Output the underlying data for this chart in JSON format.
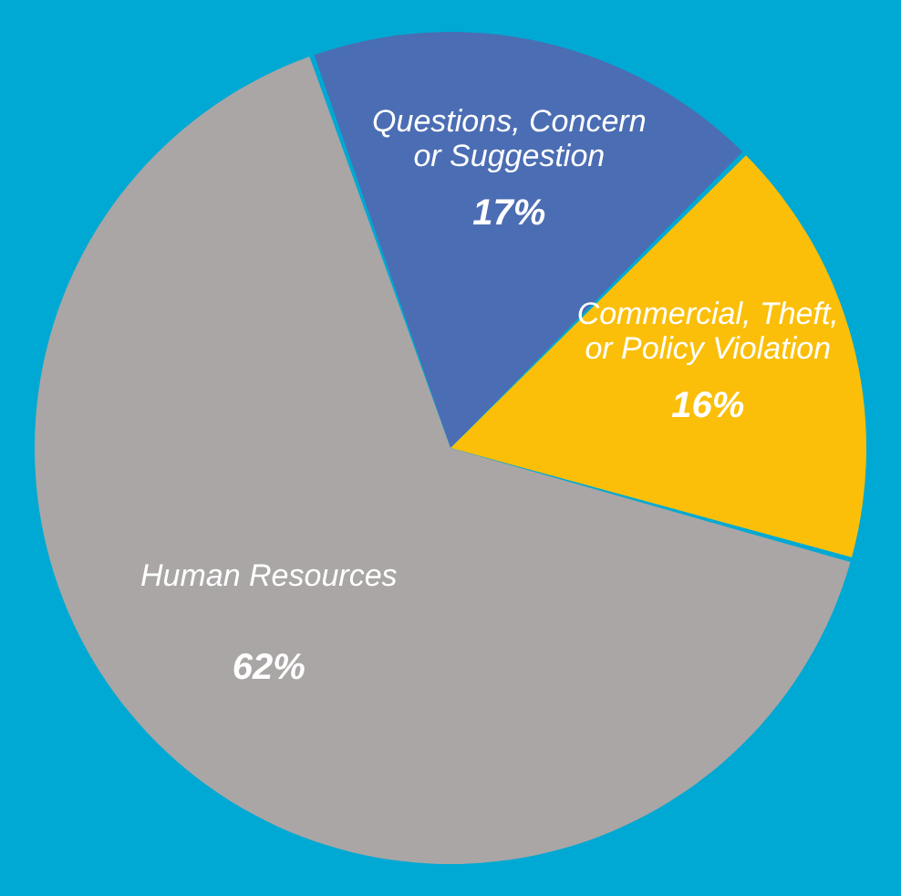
{
  "chart_data": {
    "type": "pie",
    "categories": [
      "Questions, Concern\nor Suggestion",
      "Commercial, Theft,\nor Policy Violation",
      "Human Resources"
    ],
    "values": [
      17,
      16,
      62
    ],
    "colors": [
      "#4b6db3",
      "#fbbf0a",
      "#aaa6a5"
    ],
    "value_labels": [
      "17%",
      "16%",
      "62%"
    ],
    "legend": false
  }
}
